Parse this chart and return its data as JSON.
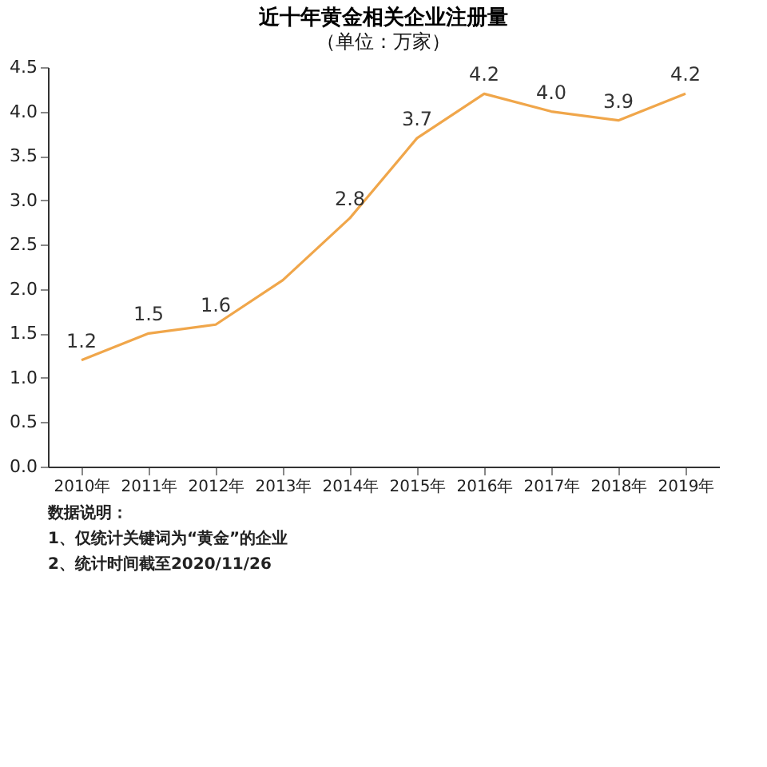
{
  "chart_data": {
    "type": "line",
    "title": "近十年黄金相关企业注册量",
    "subtitle": "（单位：万家）",
    "categories": [
      "2010年",
      "2011年",
      "2012年",
      "2013年",
      "2014年",
      "2015年",
      "2016年",
      "2017年",
      "2018年",
      "2019年"
    ],
    "values": [
      1.2,
      1.5,
      1.6,
      2.1,
      2.8,
      3.7,
      4.2,
      4.0,
      3.9,
      4.2
    ],
    "value_labels": [
      "1.2",
      "1.5",
      "1.6",
      null,
      "2.8",
      "3.7",
      "4.2",
      "4.0",
      "3.9",
      "4.2"
    ],
    "color": "#f0a64a",
    "ylim": [
      0,
      4.5
    ],
    "yticks": [
      {
        "value": 0,
        "label": "0.0"
      },
      {
        "value": 0.5,
        "label": "0.5"
      },
      {
        "value": 1,
        "label": "1.0"
      },
      {
        "value": 1.5,
        "label": "1.5"
      },
      {
        "value": 2,
        "label": "2.0"
      },
      {
        "value": 2.5,
        "label": "2.5"
      },
      {
        "value": 3,
        "label": "3.0"
      },
      {
        "value": 3.5,
        "label": "3.5"
      },
      {
        "value": 4,
        "label": "4.0"
      },
      {
        "value": 4.5,
        "label": "4.5"
      }
    ],
    "grid": false,
    "marker": "none",
    "line_style": "solid",
    "annotations": [
      "数据说明：",
      "1、仅统计关键词为“黄金”的企业",
      "2、统计时间截至2020/11/26"
    ]
  }
}
